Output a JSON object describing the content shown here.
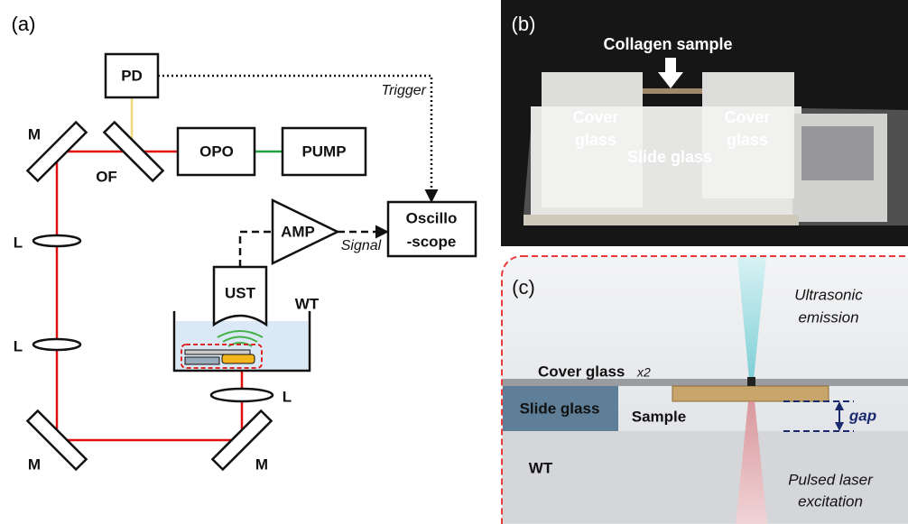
{
  "panels": {
    "a": {
      "label": "(a)",
      "components": {
        "pd": "PD",
        "opo": "OPO",
        "pump": "PUMP",
        "of": "OF",
        "amp": "AMP",
        "ust": "UST",
        "wt": "WT",
        "oscilloscope": [
          "Oscillo",
          "-scope"
        ]
      },
      "mirrors": [
        "M",
        "M",
        "M"
      ],
      "lenses": [
        "L",
        "L",
        "L"
      ],
      "signals": {
        "trigger": "Trigger",
        "signal": "Signal"
      }
    },
    "b": {
      "label": "(b)",
      "arrow_label": "Collagen sample",
      "cover_left": [
        "Cover",
        "glass"
      ],
      "cover_right": [
        "Cover",
        "glass"
      ],
      "slide": "Slide glass"
    },
    "c": {
      "label": "(c)",
      "ultrasonic": [
        "Ultrasonic",
        "emission"
      ],
      "cover": "Cover glass",
      "cover_count": "x2",
      "slide": "Slide glass",
      "sample": "Sample",
      "gap": "gap",
      "wt": "WT",
      "laser": [
        "Pulsed laser",
        "excitation"
      ]
    }
  }
}
